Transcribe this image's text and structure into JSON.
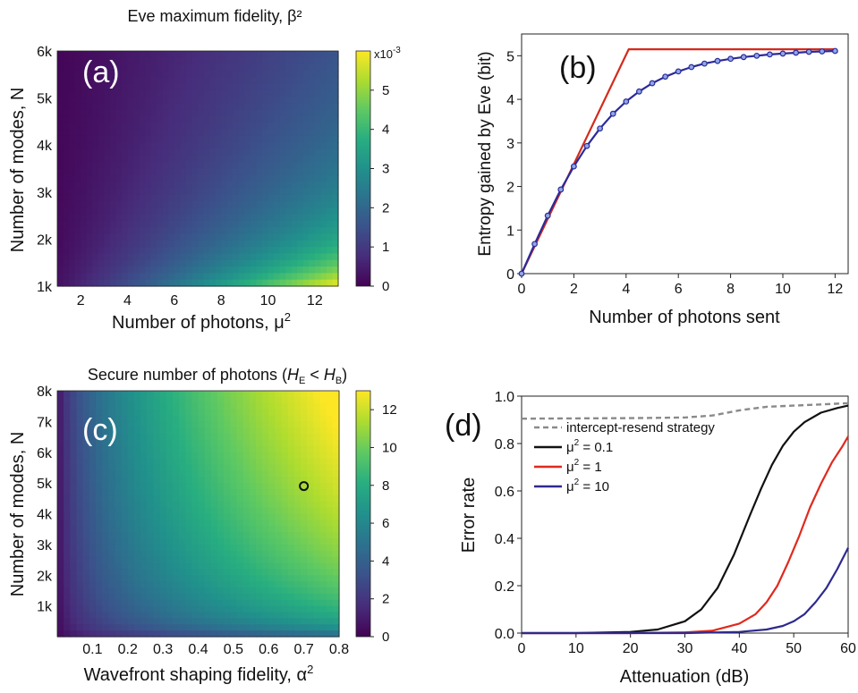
{
  "chart_data": [
    {
      "panel": "(a)",
      "type": "heatmap",
      "title": "Eve maximum fidelity, β²",
      "xlabel": "Number of photons, μ²",
      "ylabel": "Number of modes, N",
      "xticks": [
        "2",
        "4",
        "6",
        "8",
        "10",
        "12"
      ],
      "yticks": [
        "1k",
        "2k",
        "3k",
        "4k",
        "5k",
        "6k"
      ],
      "xlim": [
        1,
        13
      ],
      "ylim": [
        1000,
        6000
      ],
      "colorbar": {
        "ticks": [
          "0",
          "1",
          "2",
          "3",
          "4",
          "5"
        ],
        "range": [
          0,
          6
        ],
        "exponent": "x10",
        "exponent_power": "-3"
      },
      "model": "value ≈ μ² / N (×10⁻³ scale), peaking ~6 at μ²=13, N=1k"
    },
    {
      "panel": "(b)",
      "type": "line",
      "xlabel": "Number of photons sent",
      "ylabel": "Entropy gained by Eve (bit)",
      "xlim": [
        0,
        12.5
      ],
      "ylim": [
        0,
        5.5
      ],
      "xticks": [
        "0",
        "2",
        "4",
        "6",
        "8",
        "10",
        "12"
      ],
      "yticks": [
        "0",
        "1",
        "2",
        "3",
        "4",
        "5"
      ],
      "series": [
        {
          "color": "#d42a1c",
          "x": [
            0,
            4.1,
            12
          ],
          "y": [
            0,
            5.15,
            5.15
          ]
        },
        {
          "color": "#2b2a9a",
          "markers": true,
          "x": [
            0,
            0.5,
            1,
            1.5,
            2,
            2.5,
            3,
            3.5,
            4,
            4.5,
            5,
            5.5,
            6,
            6.5,
            7,
            7.5,
            8,
            8.5,
            9,
            9.5,
            10,
            10.5,
            11,
            11.5,
            12
          ],
          "y": [
            0,
            0.68,
            1.33,
            1.93,
            2.46,
            2.93,
            3.33,
            3.67,
            3.95,
            4.18,
            4.37,
            4.52,
            4.64,
            4.74,
            4.82,
            4.88,
            4.93,
            4.97,
            5.0,
            5.03,
            5.05,
            5.07,
            5.09,
            5.1,
            5.11
          ]
        }
      ]
    },
    {
      "panel": "(c)",
      "type": "heatmap",
      "title_parts": [
        "Secure number of photons (",
        "H",
        "E",
        " < ",
        "H",
        "B",
        ")"
      ],
      "xlabel": "Wavefront shaping fidelity, α²",
      "ylabel": "Number of modes, N",
      "xticks": [
        "0.1",
        "0.2",
        "0.3",
        "0.4",
        "0.5",
        "0.6",
        "0.7",
        "0.8"
      ],
      "yticks": [
        "1k",
        "2k",
        "3k",
        "4k",
        "5k",
        "6k",
        "7k",
        "8k"
      ],
      "xlim": [
        0,
        0.8
      ],
      "ylim": [
        0,
        8000
      ],
      "colorbar": {
        "ticks": [
          "0",
          "2",
          "4",
          "6",
          "8",
          "10",
          "12"
        ],
        "range": [
          0,
          13
        ]
      },
      "marker": {
        "x": 0.7,
        "y": 4900,
        "shape": "open circle"
      }
    },
    {
      "panel": "(d)",
      "type": "line",
      "xlabel": "Attenuation (dB)",
      "ylabel": "Error rate",
      "xlim": [
        0,
        60
      ],
      "ylim": [
        0,
        1.0
      ],
      "xticks": [
        "0",
        "10",
        "20",
        "30",
        "40",
        "50",
        "60"
      ],
      "yticks": [
        "0.0",
        "0.2",
        "0.4",
        "0.6",
        "0.8",
        "1.0"
      ],
      "series": [
        {
          "name": "intercept-resend strategy",
          "color": "#8a8a8a",
          "dashed": true,
          "x": [
            0,
            10,
            20,
            30,
            35,
            40,
            45,
            50,
            55,
            60
          ],
          "y": [
            0.905,
            0.906,
            0.907,
            0.91,
            0.918,
            0.94,
            0.955,
            0.96,
            0.965,
            0.97
          ]
        },
        {
          "name_prefix": "μ",
          "name_sup": "2",
          "name_suffix": " = 0.1",
          "color": "#111111",
          "x": [
            0,
            10,
            20,
            25,
            30,
            33,
            36,
            39,
            42,
            44,
            46,
            48,
            50,
            52,
            55,
            58,
            60
          ],
          "y": [
            0.0,
            0.0,
            0.005,
            0.015,
            0.05,
            0.1,
            0.19,
            0.33,
            0.5,
            0.61,
            0.71,
            0.79,
            0.85,
            0.89,
            0.93,
            0.95,
            0.96
          ]
        },
        {
          "name_prefix": "μ",
          "name_sup": "2",
          "name_suffix": " = 1",
          "color": "#e0291d",
          "x": [
            0,
            20,
            30,
            35,
            40,
            43,
            45,
            47,
            49,
            51,
            53,
            55,
            57,
            59,
            60
          ],
          "y": [
            0.0,
            0.0,
            0.003,
            0.01,
            0.04,
            0.08,
            0.13,
            0.2,
            0.3,
            0.41,
            0.53,
            0.63,
            0.72,
            0.79,
            0.83
          ]
        },
        {
          "name_prefix": "μ",
          "name_sup": "2",
          "name_suffix": " = 10",
          "color": "#2d2a8f",
          "x": [
            0,
            30,
            40,
            45,
            48,
            50,
            52,
            54,
            56,
            58,
            60
          ],
          "y": [
            0.0,
            0.0,
            0.005,
            0.015,
            0.03,
            0.05,
            0.08,
            0.13,
            0.19,
            0.27,
            0.36
          ]
        }
      ]
    }
  ]
}
